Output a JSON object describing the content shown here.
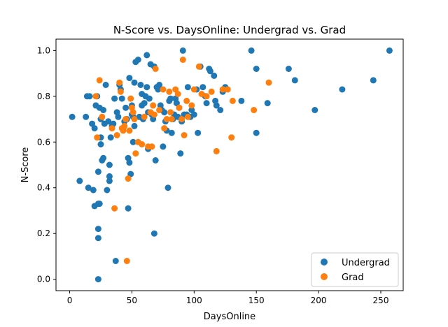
{
  "chart_data": {
    "type": "scatter",
    "title": "N-Score vs. DaysOnline: Undergrad vs. Grad",
    "xlabel": "DaysOnline",
    "ylabel": "N-Score",
    "xlim": [
      -11,
      268
    ],
    "ylim": [
      -0.05,
      1.05
    ],
    "xticks": [
      0,
      50,
      100,
      150,
      200,
      250
    ],
    "yticks": [
      0.0,
      0.2,
      0.4,
      0.6,
      0.8,
      1.0
    ],
    "xtick_labels": [
      "0",
      "50",
      "100",
      "150",
      "200",
      "250"
    ],
    "ytick_labels": [
      "0.0",
      "0.2",
      "0.4",
      "0.6",
      "0.8",
      "1.0"
    ],
    "grid": false,
    "legend": "bottom-right",
    "series": [
      {
        "name": "Undergrad",
        "color": "#1f77b4",
        "points": [
          [
            2,
            0.71
          ],
          [
            8,
            0.43
          ],
          [
            13,
            0.71
          ],
          [
            14,
            0.8
          ],
          [
            15,
            0.4
          ],
          [
            16,
            0.8
          ],
          [
            18,
            0.68
          ],
          [
            19,
            0.39
          ],
          [
            20,
            0.66
          ],
          [
            20,
            0.32
          ],
          [
            21,
            0.76
          ],
          [
            22,
            0.8
          ],
          [
            23,
            0.47
          ],
          [
            23,
            0.22
          ],
          [
            23,
            0.18
          ],
          [
            23,
            0.0
          ],
          [
            23,
            0.33
          ],
          [
            24,
            0.75
          ],
          [
            24,
            0.33
          ],
          [
            25,
            0.7
          ],
          [
            25,
            0.62
          ],
          [
            25,
            0.59
          ],
          [
            26,
            0.52
          ],
          [
            27,
            0.74
          ],
          [
            27,
            0.53
          ],
          [
            28,
            0.68
          ],
          [
            29,
            0.85
          ],
          [
            30,
            0.39
          ],
          [
            31,
            0.69
          ],
          [
            32,
            0.5
          ],
          [
            32,
            0.45
          ],
          [
            32,
            0.43
          ],
          [
            33,
            0.62
          ],
          [
            34,
            0.67
          ],
          [
            35,
            0.68
          ],
          [
            36,
            0.79
          ],
          [
            37,
            0.08
          ],
          [
            38,
            0.73
          ],
          [
            39,
            0.71
          ],
          [
            40,
            0.85
          ],
          [
            41,
            0.83
          ],
          [
            42,
            0.79
          ],
          [
            43,
            0.66
          ],
          [
            44,
            0.69
          ],
          [
            45,
            0.75
          ],
          [
            46,
            0.7
          ],
          [
            47,
            0.53
          ],
          [
            47,
            0.31
          ],
          [
            48,
            0.88
          ],
          [
            48,
            0.51
          ],
          [
            49,
            0.46
          ],
          [
            50,
            0.76
          ],
          [
            50,
            0.72
          ],
          [
            51,
            0.71
          ],
          [
            51,
            0.6
          ],
          [
            52,
            0.86
          ],
          [
            52,
            0.67
          ],
          [
            53,
            0.95
          ],
          [
            55,
            0.96
          ],
          [
            56,
            0.71
          ],
          [
            57,
            0.85
          ],
          [
            58,
            0.76
          ],
          [
            58,
            0.81
          ],
          [
            59,
            0.7
          ],
          [
            60,
            0.77
          ],
          [
            61,
            0.8
          ],
          [
            62,
            0.98
          ],
          [
            62,
            0.84
          ],
          [
            63,
            0.73
          ],
          [
            63,
            0.57
          ],
          [
            64,
            0.79
          ],
          [
            65,
            0.94
          ],
          [
            66,
            0.72
          ],
          [
            67,
            0.7
          ],
          [
            68,
            0.93
          ],
          [
            68,
            0.2
          ],
          [
            69,
            0.52
          ],
          [
            70,
            0.84
          ],
          [
            71,
            0.83
          ],
          [
            72,
            0.85
          ],
          [
            73,
            0.76
          ],
          [
            74,
            0.74
          ],
          [
            75,
            0.58
          ],
          [
            76,
            0.73
          ],
          [
            77,
            0.69
          ],
          [
            78,
            0.65
          ],
          [
            79,
            0.4
          ],
          [
            80,
            0.78
          ],
          [
            81,
            0.79
          ],
          [
            82,
            0.64
          ],
          [
            83,
            0.7
          ],
          [
            84,
            0.72
          ],
          [
            85,
            0.79
          ],
          [
            86,
            0.77
          ],
          [
            87,
            0.71
          ],
          [
            88,
            0.75
          ],
          [
            89,
            0.55
          ],
          [
            90,
            0.69
          ],
          [
            91,
            1.0
          ],
          [
            92,
            0.72
          ],
          [
            94,
            0.72
          ],
          [
            95,
            0.84
          ],
          [
            97,
            0.71
          ],
          [
            98,
            0.74
          ],
          [
            100,
            0.72
          ],
          [
            102,
            0.83
          ],
          [
            103,
            0.64
          ],
          [
            105,
            0.93
          ],
          [
            107,
            0.84
          ],
          [
            109,
            0.8
          ],
          [
            110,
            0.77
          ],
          [
            112,
            0.92
          ],
          [
            113,
            0.91
          ],
          [
            116,
            0.89
          ],
          [
            117,
            0.78
          ],
          [
            118,
            0.76
          ],
          [
            121,
            0.74
          ],
          [
            123,
            0.82
          ],
          [
            125,
            0.84
          ],
          [
            138,
            0.78
          ],
          [
            146,
            1.0
          ],
          [
            150,
            0.92
          ],
          [
            150,
            0.64
          ],
          [
            159,
            0.77
          ],
          [
            176,
            0.92
          ],
          [
            181,
            0.87
          ],
          [
            197,
            0.74
          ],
          [
            219,
            0.83
          ],
          [
            244,
            0.87
          ],
          [
            257,
            1.0
          ]
        ]
      },
      {
        "name": "Grad",
        "color": "#ff7f0e",
        "points": [
          [
            21,
            0.8
          ],
          [
            22,
            0.62
          ],
          [
            24,
            0.87
          ],
          [
            26,
            0.71
          ],
          [
            34,
            0.66
          ],
          [
            36,
            0.31
          ],
          [
            38,
            0.63
          ],
          [
            40,
            0.86
          ],
          [
            41,
            0.82
          ],
          [
            42,
            0.66
          ],
          [
            43,
            0.65
          ],
          [
            44,
            0.67
          ],
          [
            45,
            0.7
          ],
          [
            46,
            0.08
          ],
          [
            47,
            0.44
          ],
          [
            48,
            0.65
          ],
          [
            49,
            0.79
          ],
          [
            50,
            0.75
          ],
          [
            51,
            0.73
          ],
          [
            52,
            0.7
          ],
          [
            53,
            0.55
          ],
          [
            55,
            0.6
          ],
          [
            58,
            0.59
          ],
          [
            60,
            0.71
          ],
          [
            63,
            0.58
          ],
          [
            65,
            0.73
          ],
          [
            66,
            0.58
          ],
          [
            67,
            0.76
          ],
          [
            68,
            0.72
          ],
          [
            69,
            0.92
          ],
          [
            72,
            0.74
          ],
          [
            75,
            0.83
          ],
          [
            76,
            0.66
          ],
          [
            78,
            0.7
          ],
          [
            80,
            0.82
          ],
          [
            81,
            0.73
          ],
          [
            82,
            0.7
          ],
          [
            85,
            0.83
          ],
          [
            87,
            0.81
          ],
          [
            88,
            0.75
          ],
          [
            90,
            0.7
          ],
          [
            91,
            0.96
          ],
          [
            92,
            0.63
          ],
          [
            94,
            0.78
          ],
          [
            95,
            0.71
          ],
          [
            98,
            0.76
          ],
          [
            100,
            0.83
          ],
          [
            104,
            0.93
          ],
          [
            106,
            0.81
          ],
          [
            110,
            0.8
          ],
          [
            114,
            0.82
          ],
          [
            118,
            0.56
          ],
          [
            123,
            0.83
          ],
          [
            127,
            0.83
          ],
          [
            130,
            0.62
          ],
          [
            131,
            0.78
          ],
          [
            148,
            0.74
          ],
          [
            160,
            0.86
          ]
        ]
      }
    ]
  }
}
